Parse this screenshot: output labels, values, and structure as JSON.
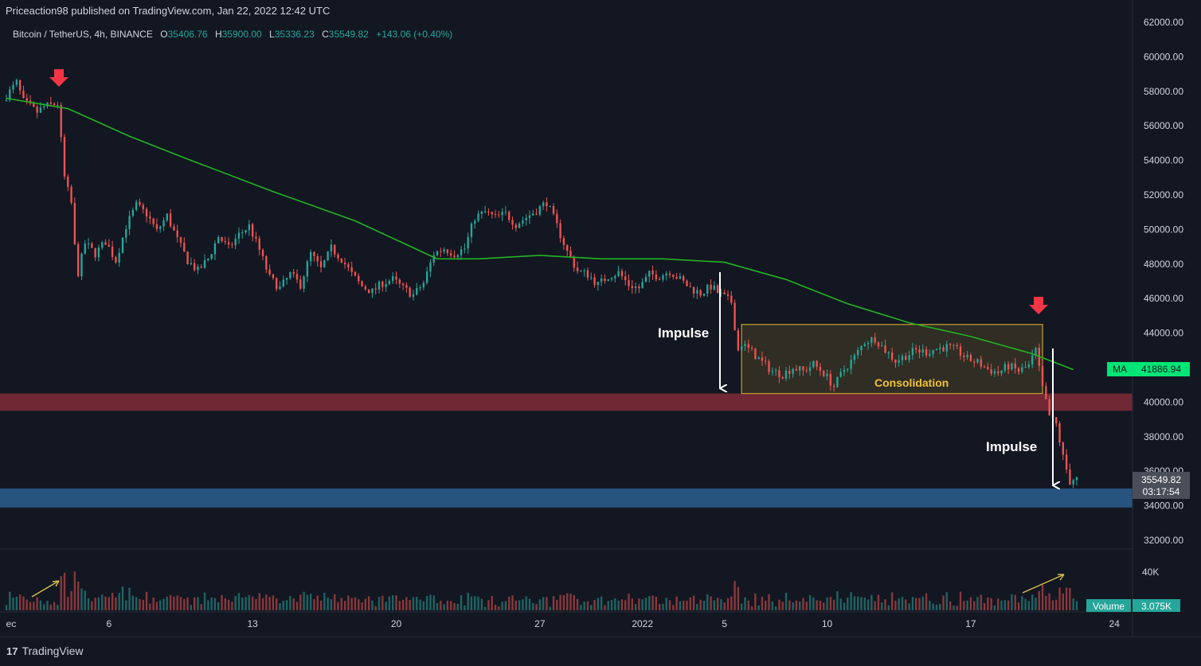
{
  "header": {
    "published": "Priceaction98 published on TradingView.com, Jan 22, 2022 12:42 UTC"
  },
  "legend": {
    "symbol": "Bitcoin / TetherUS, 4h, BINANCE",
    "o_label": "O",
    "o": "35406.76",
    "h_label": "H",
    "h": "35900.00",
    "l_label": "L",
    "l": "35336.23",
    "c_label": "C",
    "c": "35549.82",
    "change": "+143.06 (+0.40%)"
  },
  "ma_badge": {
    "label": "MA",
    "value": "41886.94"
  },
  "price_badge": {
    "price": "35549.82",
    "countdown": "03:17:54"
  },
  "volume_badge": {
    "label": "Volume",
    "value": "3.075K"
  },
  "annotations": {
    "impulse_1": "Impulse",
    "impulse_2": "Impulse",
    "consolidation": "Consolidation"
  },
  "footer": {
    "brand": "TradingView",
    "logo": "17"
  },
  "colors": {
    "background": "#131722",
    "up": "#26a69a",
    "down": "#ef5350",
    "ma": "#22b422",
    "resistance_zone": "#7a2a36",
    "support_zone": "#2a5a8a",
    "box": "#c8a030",
    "arrow_red": "#f23645"
  },
  "chart_data": {
    "type": "candlestick",
    "symbol": "Bitcoin / TetherUS",
    "timeframe": "4h",
    "y_ticks": [
      "62000.00",
      "60000.00",
      "58000.00",
      "56000.00",
      "54000.00",
      "52000.00",
      "50000.00",
      "48000.00",
      "46000.00",
      "44000.00",
      "42000.00",
      "40000.00",
      "38000.00",
      "36000.00",
      "34000.00",
      "32000.00"
    ],
    "ylim": [
      31500,
      62000
    ],
    "x_ticks": [
      {
        "label": "ec",
        "date": "2021-12-01"
      },
      {
        "label": "6",
        "date": "2021-12-06"
      },
      {
        "label": "13",
        "date": "2021-12-13"
      },
      {
        "label": "20",
        "date": "2021-12-20"
      },
      {
        "label": "27",
        "date": "2021-12-27"
      },
      {
        "label": "2022",
        "date": "2022-01-01"
      },
      {
        "label": "5",
        "date": "2022-01-05"
      },
      {
        "label": "10",
        "date": "2022-01-10"
      },
      {
        "label": "17",
        "date": "2022-01-17"
      },
      {
        "label": "24",
        "date": "2022-01-24"
      }
    ],
    "xlim": [
      "2021-12-01",
      "2022-01-25"
    ],
    "price_path": [
      [
        "2021-12-01",
        57500
      ],
      [
        "2021-12-01T16",
        58500
      ],
      [
        "2021-12-02",
        57400
      ],
      [
        "2021-12-02T16",
        56800
      ],
      [
        "2021-12-03",
        57100
      ],
      [
        "2021-12-03T16",
        57300
      ],
      [
        "2021-12-04",
        53000
      ],
      [
        "2021-12-04T08",
        51500
      ],
      [
        "2021-12-04T12",
        49000
      ],
      [
        "2021-12-04T16",
        47500
      ],
      [
        "2021-12-05",
        49200
      ],
      [
        "2021-12-05T12",
        48600
      ],
      [
        "2021-12-06",
        49300
      ],
      [
        "2021-12-06T12",
        48200
      ],
      [
        "2021-12-07",
        50200
      ],
      [
        "2021-12-07T12",
        51400
      ],
      [
        "2021-12-08",
        50900
      ],
      [
        "2021-12-08T12",
        49900
      ],
      [
        "2021-12-09",
        50800
      ],
      [
        "2021-12-09T12",
        49400
      ],
      [
        "2021-12-10",
        48200
      ],
      [
        "2021-12-10T12",
        47600
      ],
      [
        "2021-12-11",
        48300
      ],
      [
        "2021-12-11T12",
        49600
      ],
      [
        "2021-12-12",
        48900
      ],
      [
        "2021-12-12T12",
        49700
      ],
      [
        "2021-12-13",
        50200
      ],
      [
        "2021-12-13T12",
        48800
      ],
      [
        "2021-12-14",
        47200
      ],
      [
        "2021-12-14T12",
        46600
      ],
      [
        "2021-12-15",
        47400
      ],
      [
        "2021-12-15T12",
        46800
      ],
      [
        "2021-12-16",
        48600
      ],
      [
        "2021-12-16T12",
        47700
      ],
      [
        "2021-12-17",
        48900
      ],
      [
        "2021-12-17T12",
        48300
      ],
      [
        "2021-12-18",
        47400
      ],
      [
        "2021-12-18T12",
        46700
      ],
      [
        "2021-12-19",
        46400
      ],
      [
        "2021-12-19T12",
        46900
      ],
      [
        "2021-12-20",
        47100
      ],
      [
        "2021-12-20T12",
        46600
      ],
      [
        "2021-12-21",
        46200
      ],
      [
        "2021-12-21T12",
        46900
      ],
      [
        "2021-12-22",
        48600
      ],
      [
        "2021-12-22T12",
        48900
      ],
      [
        "2021-12-23",
        48600
      ],
      [
        "2021-12-23T12",
        48900
      ],
      [
        "2021-12-24",
        50700
      ],
      [
        "2021-12-24T12",
        51000
      ],
      [
        "2021-12-25",
        50700
      ],
      [
        "2021-12-25T12",
        50900
      ],
      [
        "2021-12-26",
        50300
      ],
      [
        "2021-12-26T12",
        50700
      ],
      [
        "2021-12-27",
        51100
      ],
      [
        "2021-12-27T12",
        51600
      ],
      [
        "2021-12-28",
        50200
      ],
      [
        "2021-12-28T12",
        48700
      ],
      [
        "2021-12-29",
        47600
      ],
      [
        "2021-12-29T12",
        47400
      ],
      [
        "2021-12-30",
        46800
      ],
      [
        "2021-12-30T12",
        47300
      ],
      [
        "2021-12-31",
        47500
      ],
      [
        "2021-12-31T12",
        46800
      ],
      [
        "2022-01-01",
        46600
      ],
      [
        "2022-01-01T12",
        47400
      ],
      [
        "2022-01-02",
        47300
      ],
      [
        "2022-01-02T12",
        47600
      ],
      [
        "2022-01-03",
        47100
      ],
      [
        "2022-01-03T12",
        46600
      ],
      [
        "2022-01-04",
        46300
      ],
      [
        "2022-01-04T12",
        46700
      ],
      [
        "2022-01-05",
        46200
      ],
      [
        "2022-01-05T12",
        45800
      ],
      [
        "2022-01-05T20",
        43000
      ],
      [
        "2022-01-06",
        43400
      ],
      [
        "2022-01-06T12",
        42900
      ],
      [
        "2022-01-07",
        42300
      ],
      [
        "2022-01-07T12",
        41800
      ],
      [
        "2022-01-08",
        41600
      ],
      [
        "2022-01-08T12",
        42000
      ],
      [
        "2022-01-09",
        41800
      ],
      [
        "2022-01-09T12",
        42200
      ],
      [
        "2022-01-10",
        41700
      ],
      [
        "2022-01-10T12",
        40900
      ],
      [
        "2022-01-11",
        41900
      ],
      [
        "2022-01-11T12",
        42600
      ],
      [
        "2022-01-12",
        43500
      ],
      [
        "2022-01-12T12",
        43700
      ],
      [
        "2022-01-13",
        43000
      ],
      [
        "2022-01-13T12",
        42400
      ],
      [
        "2022-01-14",
        42700
      ],
      [
        "2022-01-14T12",
        43000
      ],
      [
        "2022-01-15",
        42900
      ],
      [
        "2022-01-15T12",
        43100
      ],
      [
        "2022-01-16",
        43200
      ],
      [
        "2022-01-16T12",
        43000
      ],
      [
        "2022-01-17",
        42500
      ],
      [
        "2022-01-17T12",
        42300
      ],
      [
        "2022-01-18",
        41900
      ],
      [
        "2022-01-18T12",
        41700
      ],
      [
        "2022-01-19",
        42100
      ],
      [
        "2022-01-19T12",
        41800
      ],
      [
        "2022-01-20",
        42100
      ],
      [
        "2022-01-20T08",
        43000
      ],
      [
        "2022-01-20T16",
        40800
      ],
      [
        "2022-01-21",
        39200
      ],
      [
        "2022-01-21T08",
        38700
      ],
      [
        "2022-01-21T16",
        36800
      ],
      [
        "2022-01-22",
        35406
      ],
      [
        "2022-01-22T04",
        35550
      ]
    ],
    "ma_path": [
      [
        "2021-12-01",
        57600
      ],
      [
        "2021-12-04",
        57000
      ],
      [
        "2021-12-07",
        55400
      ],
      [
        "2021-12-10",
        54000
      ],
      [
        "2021-12-14",
        52200
      ],
      [
        "2021-12-18",
        50500
      ],
      [
        "2021-12-22",
        48300
      ],
      [
        "2021-12-24",
        48300
      ],
      [
        "2021-12-27",
        48500
      ],
      [
        "2021-12-30",
        48300
      ],
      [
        "2022-01-02",
        48300
      ],
      [
        "2022-01-05",
        48100
      ],
      [
        "2022-01-08",
        47100
      ],
      [
        "2022-01-11",
        45700
      ],
      [
        "2022-01-14",
        44600
      ],
      [
        "2022-01-17",
        43800
      ],
      [
        "2022-01-20",
        42800
      ],
      [
        "2022-01-22",
        41887
      ]
    ],
    "volume_ticks": [
      "40K"
    ],
    "resistance_zone": [
      39500,
      40500
    ],
    "support_zone": [
      33900,
      35000
    ],
    "consolidation_box": {
      "start": "2022-01-05T20",
      "end": "2022-01-20T12",
      "low": 40500,
      "high": 44500
    }
  }
}
